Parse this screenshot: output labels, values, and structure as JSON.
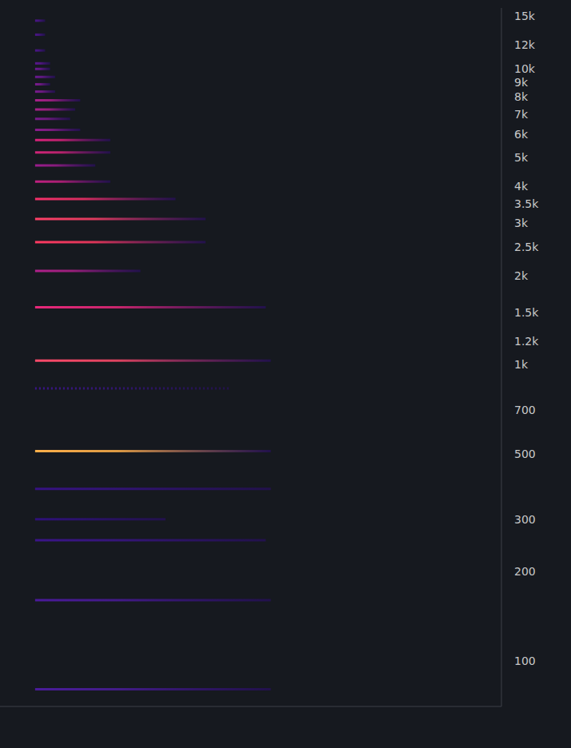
{
  "chart_data": {
    "type": "spectrogram",
    "log": "y",
    "grid": false,
    "tick_labels": "y",
    "xlim": [
      0,
      100
    ],
    "ylim": [
      70,
      16000
    ],
    "yticks": [
      100,
      200,
      300,
      500,
      700,
      {
        "value": 1000,
        "label": "1k"
      },
      {
        "value": 1200,
        "label": "1.2k"
      },
      {
        "value": 1500,
        "label": "1.5k"
      },
      {
        "value": 2000,
        "label": "2k"
      },
      {
        "value": 2500,
        "label": "2.5k"
      },
      {
        "value": 3000,
        "label": "3k"
      },
      {
        "value": 3500,
        "label": "3.5k"
      },
      {
        "value": 4000,
        "label": "4k"
      },
      {
        "value": 5000,
        "label": "5k"
      },
      {
        "value": 6000,
        "label": "6k"
      },
      {
        "value": 7000,
        "label": "7k"
      },
      {
        "value": 8000,
        "label": "8k"
      },
      {
        "value": 9000,
        "label": "9k"
      },
      {
        "value": 10000,
        "label": "10k"
      },
      {
        "value": 12000,
        "label": "12k"
      },
      {
        "value": 15000,
        "label": "15k"
      }
    ],
    "partials": [
      {
        "frequency": 80,
        "start": 7,
        "end": 54,
        "color": "#4a1c9a"
      },
      {
        "frequency": 160,
        "start": 7,
        "end": 54,
        "color": "#4a1a9a"
      },
      {
        "frequency": 255,
        "start": 7,
        "end": 53,
        "color": "#3a1488"
      },
      {
        "frequency": 300,
        "start": 7,
        "end": 33,
        "color": "#2e1078"
      },
      {
        "frequency": 380,
        "start": 7,
        "end": 54,
        "color": "#361282"
      },
      {
        "frequency": 510,
        "start": 7,
        "end": 54,
        "color": "#ffb04a"
      },
      {
        "frequency": 830,
        "start": 7,
        "end": 46,
        "color": "#3a1488",
        "line_style": "dotted"
      },
      {
        "frequency": 1030,
        "start": 7,
        "end": 54,
        "color": "#ff4a6a"
      },
      {
        "frequency": 1560,
        "start": 7,
        "end": 53,
        "color": "#e8287a"
      },
      {
        "frequency": 2070,
        "start": 7,
        "end": 28,
        "color": "#b0208a"
      },
      {
        "frequency": 2590,
        "start": 7,
        "end": 41,
        "color": "#ff3a62"
      },
      {
        "frequency": 3100,
        "start": 7,
        "end": 41,
        "color": "#ff4068"
      },
      {
        "frequency": 3620,
        "start": 7,
        "end": 35,
        "color": "#f5306a"
      },
      {
        "frequency": 4150,
        "start": 7,
        "end": 22,
        "color": "#c02080"
      },
      {
        "frequency": 4700,
        "start": 7,
        "end": 19,
        "color": "#9a1c8c"
      },
      {
        "frequency": 5200,
        "start": 7,
        "end": 22,
        "color": "#d02478"
      },
      {
        "frequency": 5730,
        "start": 7,
        "end": 22,
        "color": "#d8227a"
      },
      {
        "frequency": 6200,
        "start": 7,
        "end": 16,
        "color": "#8a1c8c"
      },
      {
        "frequency": 6750,
        "start": 7,
        "end": 14,
        "color": "#7a1a8c"
      },
      {
        "frequency": 7270,
        "start": 7,
        "end": 15,
        "color": "#a8208a"
      },
      {
        "frequency": 7800,
        "start": 7,
        "end": 16,
        "color": "#a8208a"
      },
      {
        "frequency": 8350,
        "start": 7,
        "end": 11,
        "color": "#7a1a90"
      },
      {
        "frequency": 8840,
        "start": 7,
        "end": 10,
        "color": "#7a1a90"
      },
      {
        "frequency": 9360,
        "start": 7,
        "end": 11,
        "color": "#6a1890"
      },
      {
        "frequency": 9960,
        "start": 7,
        "end": 10,
        "color": "#6a1890"
      },
      {
        "frequency": 10400,
        "start": 7,
        "end": 10,
        "color": "#5a1690"
      },
      {
        "frequency": 11500,
        "start": 7,
        "end": 9,
        "color": "#4a1488"
      },
      {
        "frequency": 13000,
        "start": 7,
        "end": 9,
        "color": "#4a1488"
      },
      {
        "frequency": 14500,
        "start": 7,
        "end": 9,
        "color": "#4a1488"
      }
    ]
  }
}
